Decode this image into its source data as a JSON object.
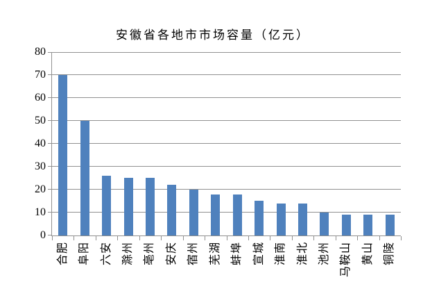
{
  "chart_data": {
    "type": "bar",
    "title": "安徽省各地市市场容量（亿元）",
    "categories": [
      "合肥",
      "阜阳",
      "六安",
      "滁州",
      "亳州",
      "安庆",
      "宿州",
      "芜湖",
      "蚌埠",
      "宣城",
      "淮南",
      "淮北",
      "池州",
      "马鞍山",
      "黄山",
      "铜陵"
    ],
    "values": [
      70,
      50,
      26,
      25,
      25,
      22,
      20,
      18,
      18,
      15,
      14,
      14,
      10,
      9,
      9,
      9
    ],
    "xlabel": "",
    "ylabel": "",
    "ylim": [
      0,
      80
    ],
    "ytick_step": 10,
    "ytick_labels": [
      "0",
      "10",
      "20",
      "30",
      "40",
      "50",
      "60",
      "70",
      "80"
    ],
    "grid": true,
    "legend": false,
    "bar_color": "#4F81BD",
    "axis_color": "#909090",
    "text_color": "#000000",
    "background_color": "#FFFFFF"
  }
}
